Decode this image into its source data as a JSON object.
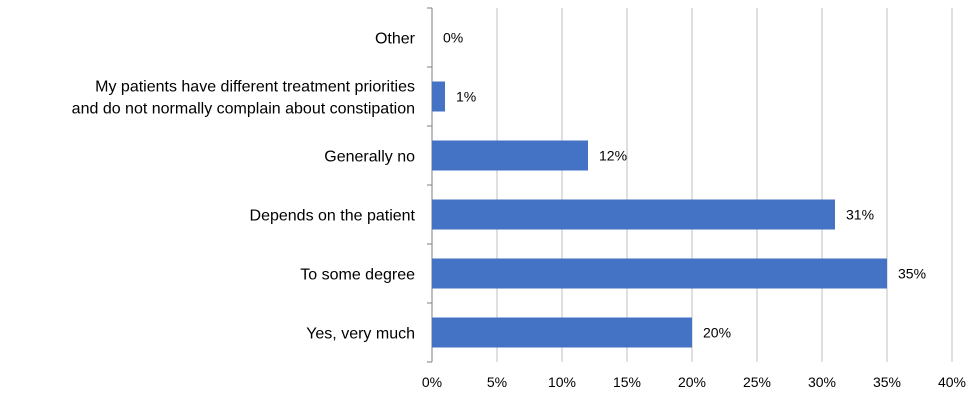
{
  "chart_data": {
    "type": "bar",
    "orientation": "horizontal",
    "title": "",
    "xlabel": "",
    "ylabel": "",
    "categories": [
      "Yes, very much",
      "To some degree",
      "Depends on the patient",
      "Generally no",
      "My patients have different treatment priorities and do not normally complain about constipation",
      "Other"
    ],
    "category_lines": [
      [
        "Yes, very much"
      ],
      [
        "To some degree"
      ],
      [
        "Depends on the patient"
      ],
      [
        "Generally no"
      ],
      [
        "My patients have different treatment priorities",
        "and do not normally complain about constipation"
      ],
      [
        "Other"
      ]
    ],
    "values": [
      20,
      35,
      31,
      12,
      1,
      0
    ],
    "data_labels": [
      "20%",
      "35%",
      "31%",
      "12%",
      "1%",
      "0%"
    ],
    "xlim": [
      0,
      40
    ],
    "x_ticks": [
      0,
      5,
      10,
      15,
      20,
      25,
      30,
      35,
      40
    ],
    "x_tick_labels": [
      "0%",
      "5%",
      "10%",
      "15%",
      "20%",
      "25%",
      "30%",
      "35%",
      "40%"
    ],
    "grid": true,
    "legend": "none",
    "colors": {
      "bar": "#4472C4",
      "grid": "#BFBFBF",
      "axis": "#7F7F7F",
      "text": "#000000"
    }
  }
}
